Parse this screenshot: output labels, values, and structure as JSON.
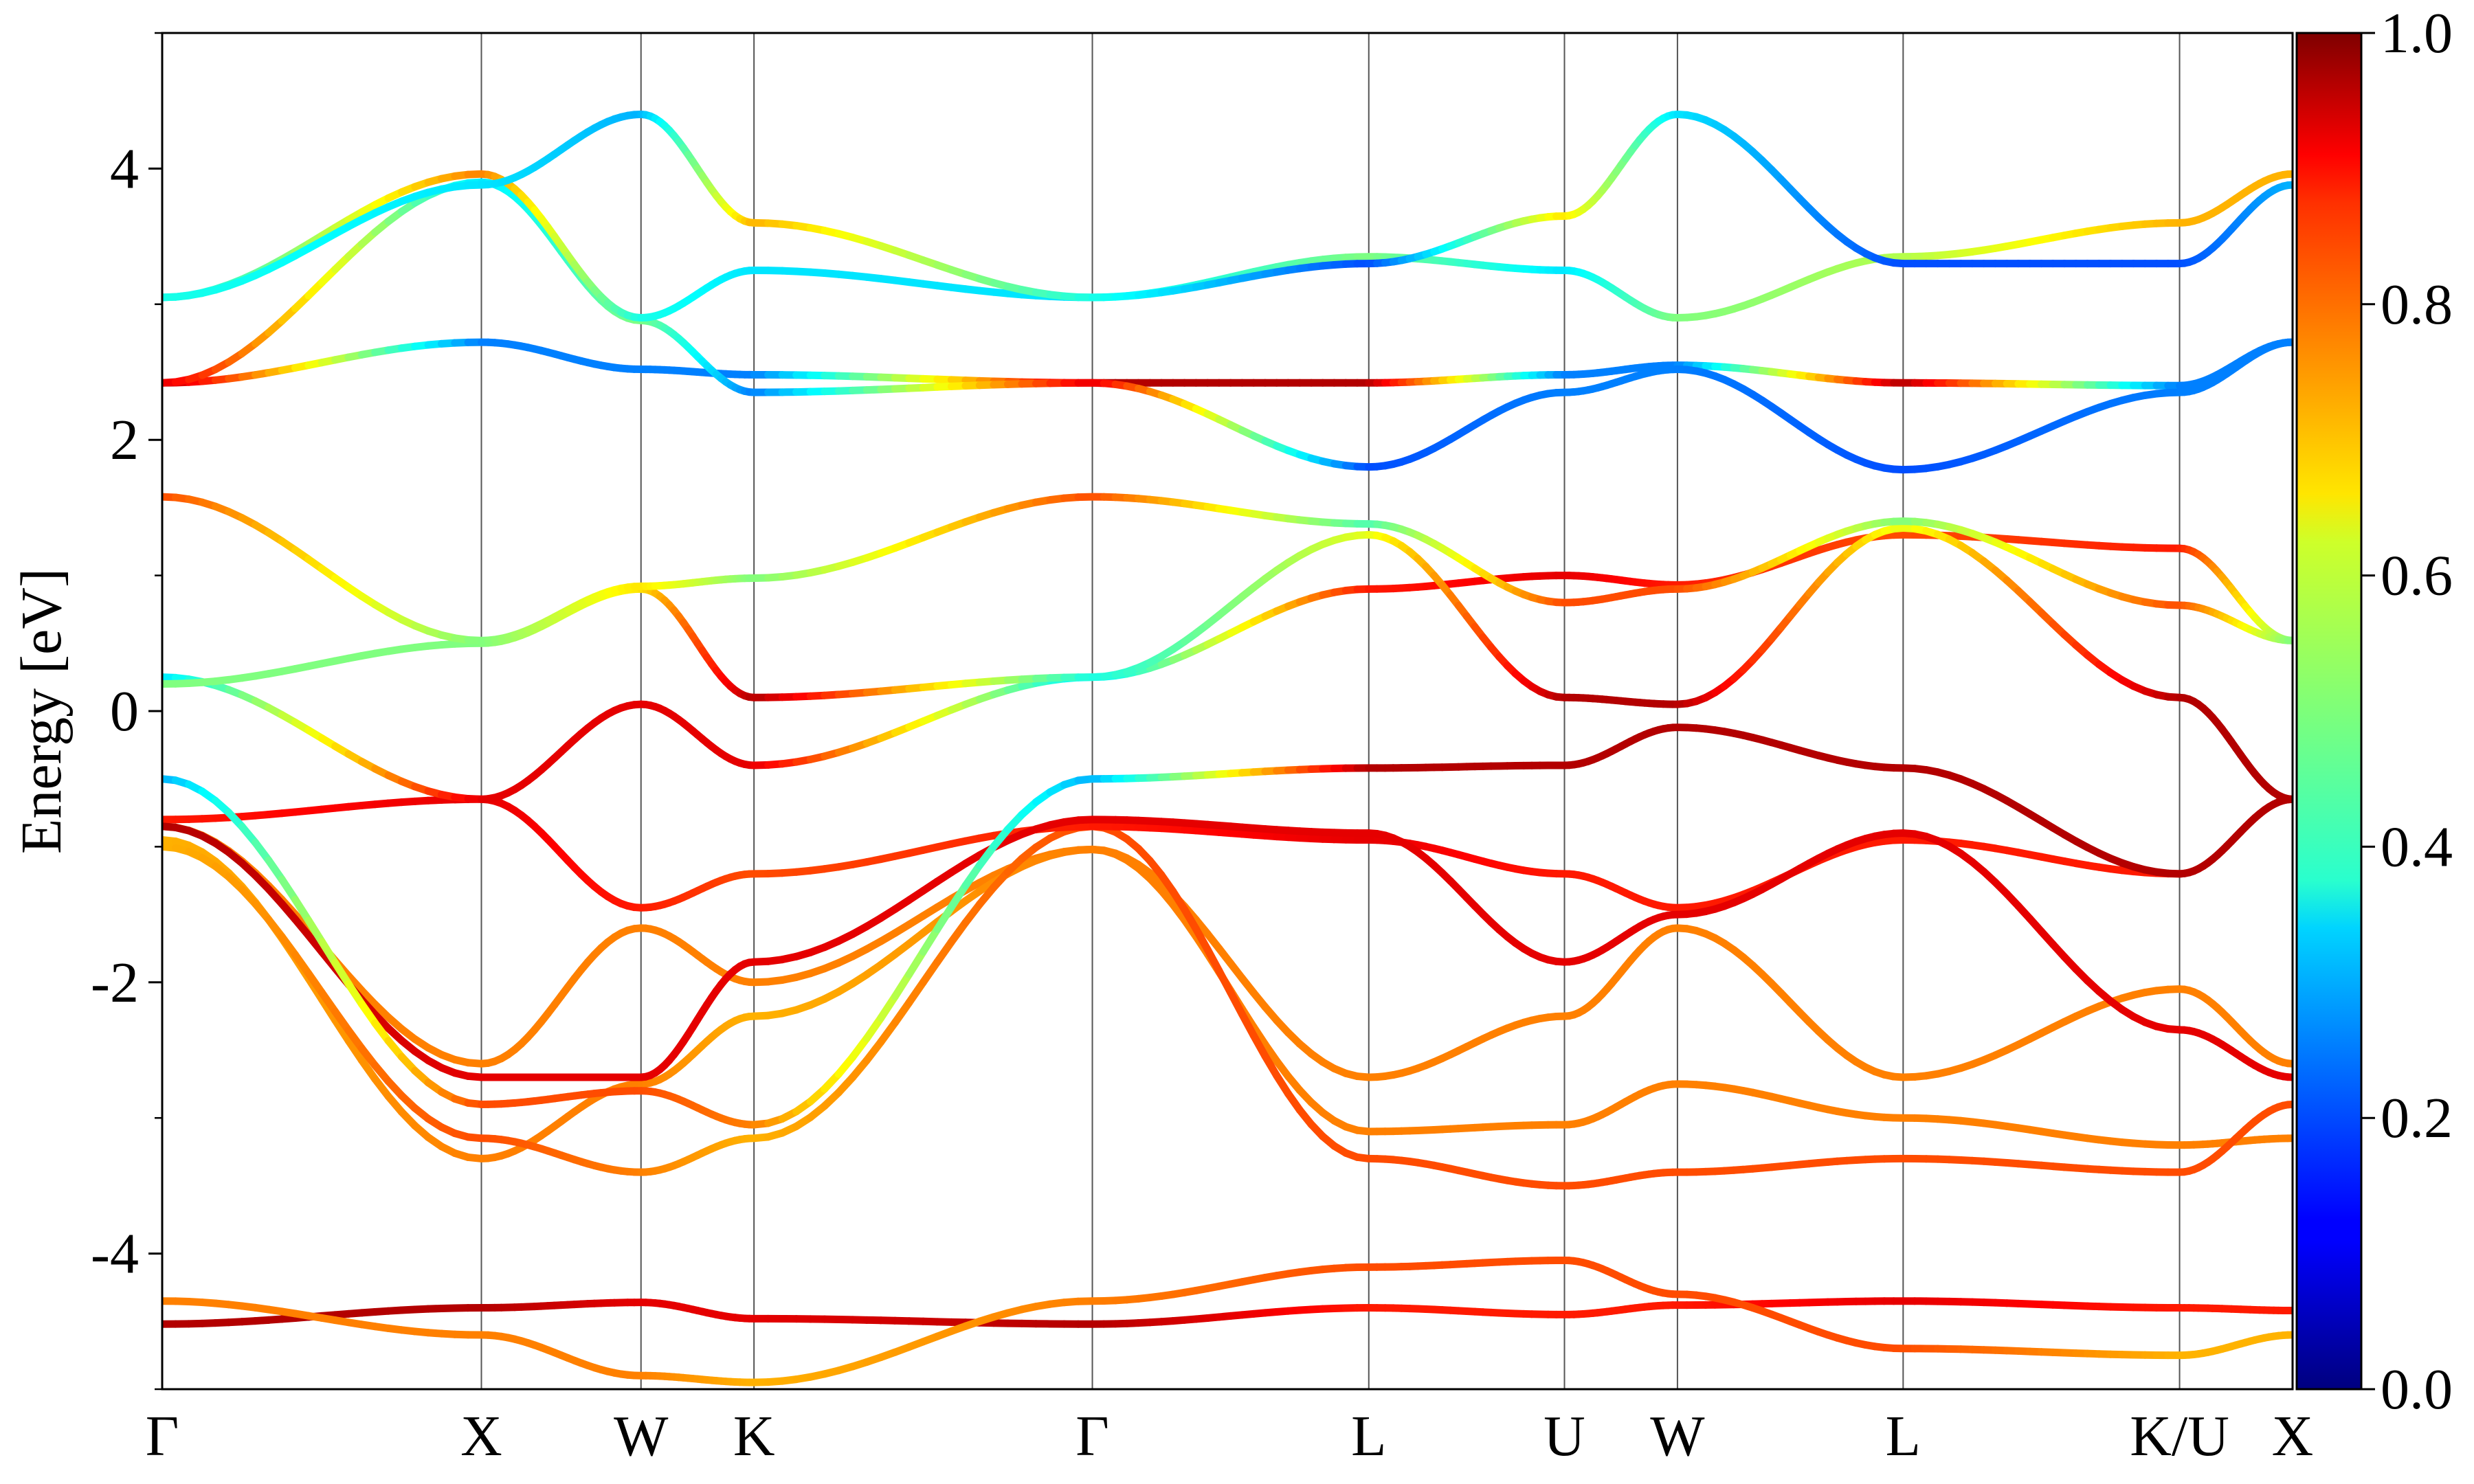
{
  "chart_data": {
    "type": "line",
    "ylabel": "Energy [eV]",
    "xlabel": "",
    "title": "",
    "ylim": [
      -5,
      5
    ],
    "y_ticks": [
      {
        "value": 4,
        "label": "4"
      },
      {
        "value": 2,
        "label": "2"
      },
      {
        "value": 0,
        "label": "0"
      },
      {
        "value": -2,
        "label": "-2"
      },
      {
        "value": -4,
        "label": "-4"
      }
    ],
    "y_minor_ticks": [
      -5,
      -3,
      -1,
      1,
      3,
      5
    ],
    "k_path": [
      {
        "label": "Γ",
        "k": 0.0
      },
      {
        "label": "X",
        "k": 1.0
      },
      {
        "label": "W",
        "k": 1.5
      },
      {
        "label": "K",
        "k": 1.854
      },
      {
        "label": "Γ",
        "k": 2.914
      },
      {
        "label": "L",
        "k": 3.78
      },
      {
        "label": "U",
        "k": 4.393
      },
      {
        "label": "W",
        "k": 4.747
      },
      {
        "label": "L",
        "k": 5.454
      },
      {
        "label": "K/U",
        "k": 6.32
      },
      {
        "label": "X",
        "k": 6.674
      }
    ],
    "colorbar": {
      "min": 0.0,
      "max": 1.0,
      "colormap": "jet",
      "ticks": [
        {
          "value": 1.0,
          "label": "1.0"
        },
        {
          "value": 0.8,
          "label": "0.8"
        },
        {
          "value": 0.6,
          "label": "0.6"
        },
        {
          "value": 0.4,
          "label": "0.4"
        },
        {
          "value": 0.2,
          "label": "0.2"
        },
        {
          "value": 0.0,
          "label": "0.0"
        }
      ]
    },
    "gridlines": "vertical at high-symmetry points",
    "series": [
      {
        "energies": [
          -4.52,
          -4.4,
          -4.36,
          -4.48,
          -4.52,
          -4.4,
          -4.45,
          -4.38,
          -4.35,
          -4.4,
          -4.42
        ],
        "weights": [
          0.95,
          0.95,
          0.9,
          0.9,
          0.95,
          0.85,
          0.85,
          0.85,
          0.9,
          0.85,
          0.85
        ]
      },
      {
        "energies": [
          -4.35,
          -4.6,
          -4.9,
          -4.95,
          -4.35,
          -4.1,
          -4.05,
          -4.3,
          -4.7,
          -4.75,
          -4.6
        ],
        "weights": [
          0.75,
          0.75,
          0.75,
          0.7,
          0.75,
          0.8,
          0.8,
          0.8,
          0.8,
          0.7,
          0.7
        ]
      },
      {
        "energies": [
          -0.85,
          -2.6,
          -1.6,
          -2.0,
          -1.02,
          -2.7,
          -2.25,
          -1.6,
          -2.7,
          -2.05,
          -2.6
        ],
        "weights": [
          0.75,
          0.75,
          0.75,
          0.75,
          0.75,
          0.75,
          0.75,
          0.75,
          0.75,
          0.75,
          0.75
        ]
      },
      {
        "energies": [
          -0.95,
          -3.3,
          -2.75,
          -2.25,
          -1.02,
          -3.1,
          -3.05,
          -2.75,
          -3.0,
          -3.2,
          -3.15
        ],
        "weights": [
          0.7,
          0.75,
          0.75,
          0.7,
          0.75,
          0.75,
          0.75,
          0.75,
          0.75,
          0.75,
          0.75
        ]
      },
      {
        "energies": [
          -1.0,
          -3.15,
          -3.4,
          -3.15,
          -0.85,
          -3.3,
          -3.5,
          -3.4,
          -3.3,
          -3.4,
          -2.9
        ],
        "weights": [
          0.7,
          0.8,
          0.75,
          0.7,
          0.8,
          0.8,
          0.8,
          0.8,
          0.8,
          0.8,
          0.8
        ]
      },
      {
        "energies": [
          -0.8,
          -0.65,
          -1.45,
          -1.2,
          -0.85,
          -0.95,
          -1.2,
          -1.45,
          -0.95,
          -1.2,
          -0.65
        ],
        "weights": [
          0.85,
          0.9,
          0.85,
          0.8,
          0.85,
          0.9,
          0.85,
          0.85,
          0.85,
          0.85,
          0.9
        ]
      },
      {
        "energies": [
          -0.85,
          -2.7,
          -2.7,
          -1.85,
          -0.8,
          -0.9,
          -1.85,
          -1.5,
          -0.9,
          -2.35,
          -2.7
        ],
        "weights": [
          0.95,
          0.9,
          0.9,
          0.9,
          0.9,
          0.9,
          0.9,
          0.9,
          0.9,
          0.9,
          0.9
        ]
      },
      {
        "energies": [
          -0.5,
          -2.9,
          -2.8,
          -3.05,
          -0.5,
          -0.42,
          -0.4,
          -0.12,
          -0.42,
          -1.2,
          -0.65
        ],
        "weights": [
          0.3,
          0.8,
          0.8,
          0.75,
          0.3,
          0.95,
          0.95,
          0.95,
          0.95,
          0.95,
          0.95
        ]
      },
      {
        "energies": [
          0.25,
          -0.65,
          0.05,
          -0.4,
          0.25,
          0.9,
          1.0,
          0.93,
          1.3,
          1.2,
          0.52
        ],
        "weights": [
          0.35,
          0.9,
          0.9,
          0.9,
          0.35,
          0.85,
          0.9,
          0.85,
          0.8,
          0.85,
          0.5
        ]
      },
      {
        "energies": [
          0.2,
          0.5,
          0.9,
          0.1,
          0.25,
          1.3,
          0.1,
          0.05,
          1.35,
          0.1,
          -0.65
        ],
        "weights": [
          0.5,
          0.5,
          0.65,
          0.95,
          0.4,
          0.6,
          0.95,
          0.95,
          0.6,
          0.95,
          0.95
        ]
      },
      {
        "energies": [
          1.58,
          0.52,
          0.92,
          0.98,
          1.58,
          1.38,
          0.8,
          0.9,
          1.4,
          0.78,
          0.52
        ],
        "weights": [
          0.8,
          0.5,
          0.65,
          0.5,
          0.8,
          0.45,
          0.8,
          0.8,
          0.5,
          0.8,
          0.5
        ]
      },
      {
        "energies": [
          2.42,
          2.72,
          2.52,
          2.48,
          2.42,
          2.42,
          2.48,
          2.55,
          2.42,
          2.4,
          2.72
        ],
        "weights": [
          0.95,
          0.25,
          0.25,
          0.25,
          0.95,
          0.95,
          0.25,
          0.25,
          0.95,
          0.25,
          0.25
        ]
      },
      {
        "energies": [
          2.42,
          3.9,
          2.88,
          2.35,
          2.42,
          1.8,
          2.35,
          2.52,
          1.78,
          2.35,
          2.72
        ],
        "weights": [
          0.9,
          0.35,
          0.5,
          0.25,
          0.9,
          0.2,
          0.25,
          0.25,
          0.2,
          0.25,
          0.25
        ]
      },
      {
        "energies": [
          3.05,
          3.96,
          2.9,
          3.25,
          3.05,
          3.35,
          3.25,
          2.9,
          3.35,
          3.6,
          3.96
        ],
        "weights": [
          0.35,
          0.75,
          0.4,
          0.35,
          0.35,
          0.5,
          0.35,
          0.5,
          0.55,
          0.7,
          0.7
        ]
      },
      {
        "energies": [
          3.05,
          3.88,
          4.4,
          3.6,
          3.05,
          3.3,
          3.65,
          4.4,
          3.3,
          3.3,
          3.88
        ],
        "weights": [
          0.4,
          0.35,
          0.3,
          0.7,
          0.4,
          0.2,
          0.65,
          0.35,
          0.2,
          0.2,
          0.3
        ]
      }
    ]
  }
}
